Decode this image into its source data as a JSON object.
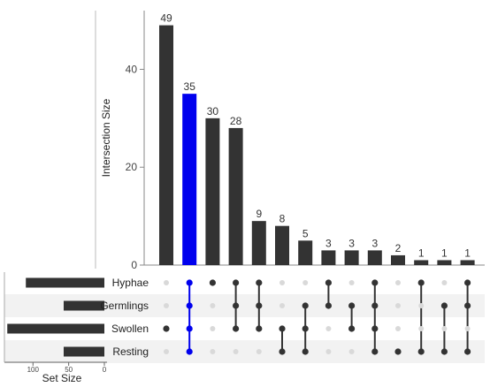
{
  "chart_data": {
    "type": "upset",
    "ylabel": "Intersection Size",
    "y_ticks": [
      0,
      20,
      40
    ],
    "ylim": [
      0,
      52
    ],
    "set_size_label": "Set Size",
    "set_size_ticks": [
      100,
      50,
      0
    ],
    "set_size_lim": [
      0,
      140
    ],
    "sets": [
      {
        "name": "Hyphae",
        "size": 110
      },
      {
        "name": "Germlings",
        "size": 57
      },
      {
        "name": "Swollen",
        "size": 136
      },
      {
        "name": "Resting",
        "size": 57
      }
    ],
    "intersections": [
      {
        "value": 49,
        "sets": [
          2
        ],
        "highlight": false
      },
      {
        "value": 35,
        "sets": [
          0,
          1,
          2,
          3
        ],
        "highlight": true
      },
      {
        "value": 30,
        "sets": [
          0
        ],
        "highlight": false
      },
      {
        "value": 28,
        "sets": [
          0,
          1,
          2
        ],
        "highlight": false
      },
      {
        "value": 9,
        "sets": [
          0,
          1,
          2
        ],
        "highlight": false
      },
      {
        "value": 8,
        "sets": [
          2,
          3
        ],
        "highlight": false
      },
      {
        "value": 5,
        "sets": [
          1,
          2,
          3
        ],
        "highlight": false
      },
      {
        "value": 3,
        "sets": [
          0,
          1
        ],
        "highlight": false
      },
      {
        "value": 3,
        "sets": [
          1,
          2
        ],
        "highlight": false
      },
      {
        "value": 3,
        "sets": [
          0,
          1,
          2,
          3
        ],
        "highlight": false
      },
      {
        "value": 2,
        "sets": [
          3
        ],
        "highlight": false
      },
      {
        "value": 1,
        "sets": [
          0,
          3
        ],
        "highlight": false
      },
      {
        "value": 1,
        "sets": [
          1,
          3
        ],
        "highlight": false
      },
      {
        "value": 1,
        "sets": [
          0,
          1,
          3
        ],
        "highlight": false
      }
    ],
    "colors": {
      "bar": "#333333",
      "highlight": "#0000ee",
      "inactive_dot": "#d9d9d9",
      "stripe": "#f2f2f2"
    },
    "grid": false
  }
}
